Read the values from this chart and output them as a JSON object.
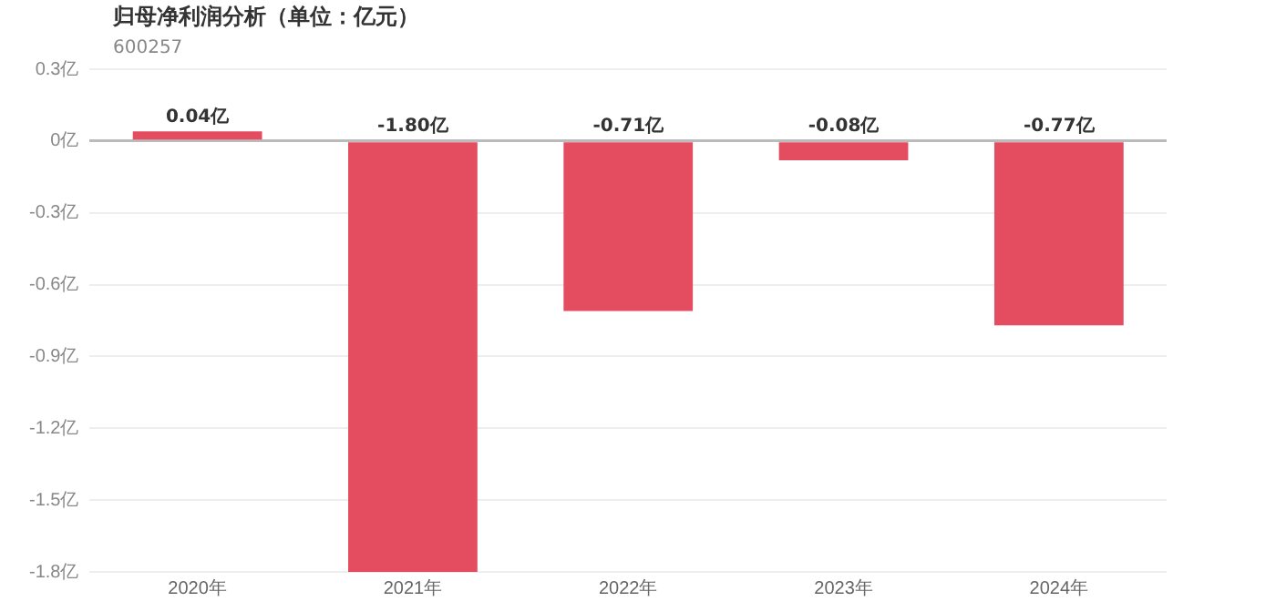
{
  "chart_data": {
    "type": "bar",
    "title": "归母净利润分析（单位：亿元）",
    "subtitle": "600257",
    "categories": [
      "2020年",
      "2021年",
      "2022年",
      "2023年",
      "2024年"
    ],
    "values": [
      0.04,
      -1.8,
      -0.71,
      -0.08,
      -0.77
    ],
    "value_labels": [
      "0.04亿",
      "-1.80亿",
      "-0.71亿",
      "-0.08亿",
      "-0.77亿"
    ],
    "color": "#e44d5f",
    "ylim": [
      -1.8,
      0.3
    ],
    "yticks": [
      {
        "value": 0.3,
        "label": "0.3亿"
      },
      {
        "value": 0,
        "label": "0亿"
      },
      {
        "value": -0.3,
        "label": "-0.3亿"
      },
      {
        "value": -0.6,
        "label": "-0.6亿"
      },
      {
        "value": -0.9,
        "label": "-0.9亿"
      },
      {
        "value": -1.2,
        "label": "-1.2亿"
      },
      {
        "value": -1.5,
        "label": "-1.5亿"
      },
      {
        "value": -1.8,
        "label": "-1.8亿"
      }
    ],
    "grid": "y",
    "legend": false
  }
}
